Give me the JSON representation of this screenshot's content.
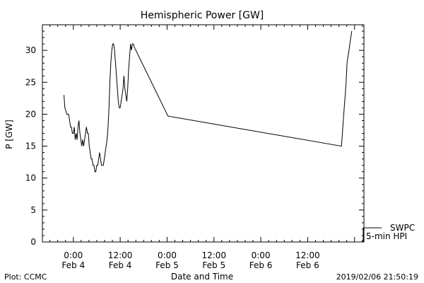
{
  "chart_data": {
    "type": "line",
    "title": "Hemispheric Power [GW]",
    "xlabel": "Date and Time",
    "ylabel": "P [GW]",
    "ylim": [
      0,
      34
    ],
    "xlim": [
      -0.33,
      3.1
    ],
    "x_unit": "days since Feb 4 0:00",
    "yticks": [
      0,
      5,
      10,
      15,
      20,
      25,
      30
    ],
    "xticks": [
      {
        "x": 0.0,
        "time": "0:00",
        "date": "Feb 4"
      },
      {
        "x": 0.5,
        "time": "12:00",
        "date": "Feb 4"
      },
      {
        "x": 1.0,
        "time": "0:00",
        "date": "Feb 5"
      },
      {
        "x": 1.5,
        "time": "12:00",
        "date": "Feb 5"
      },
      {
        "x": 2.0,
        "time": "0:00",
        "date": "Feb 6"
      },
      {
        "x": 2.5,
        "time": "12:00",
        "date": "Feb 6"
      }
    ],
    "grid": false,
    "legend": {
      "placement": "right-bottom",
      "entries": [
        "SWPC",
        "5-min HPI"
      ]
    },
    "series": [
      {
        "name": "SWPC",
        "x": [
          -0.1,
          -0.09,
          -0.07,
          -0.06,
          -0.05,
          -0.04,
          -0.03,
          -0.02,
          -0.01,
          0.0,
          0.01,
          0.02,
          0.03,
          0.04,
          0.05,
          0.06,
          0.07,
          0.08,
          0.09,
          0.1,
          0.11,
          0.12,
          0.13,
          0.14,
          0.15,
          0.16,
          0.17,
          0.18,
          0.19,
          0.2,
          0.21,
          0.22,
          0.23,
          0.24,
          0.25,
          0.26,
          0.27,
          0.28,
          0.29,
          0.3,
          0.31,
          0.32,
          0.33,
          0.34,
          0.35,
          0.36,
          0.37,
          0.38,
          0.39,
          0.4,
          0.41,
          0.42,
          0.43,
          0.44,
          0.45,
          0.46,
          0.47,
          0.48,
          0.49,
          0.5,
          0.51,
          0.52,
          0.53,
          0.54,
          0.55,
          0.56,
          0.57,
          0.58,
          0.59,
          0.6,
          0.61,
          0.62,
          0.63,
          0.64,
          0.65,
          0.66,
          0.67,
          0.68,
          0.69,
          0.7,
          0.71,
          0.72,
          0.73,
          0.74,
          0.75,
          0.76,
          0.77,
          0.78,
          0.79,
          0.8,
          0.81,
          0.82,
          0.83,
          0.84,
          0.85,
          0.86,
          0.87,
          0.88,
          0.89,
          0.9,
          0.91,
          0.92,
          0.93,
          0.94,
          0.95,
          0.96,
          0.97,
          0.98,
          0.99,
          1.0,
          1.01,
          2.86,
          2.87,
          2.88,
          2.89,
          2.9,
          2.91,
          2.92,
          2.93,
          2.94,
          2.95,
          2.96,
          2.97
        ],
        "y": [
          23,
          21,
          20,
          20,
          20,
          19,
          18,
          18,
          17,
          17,
          18,
          16,
          17,
          16,
          18,
          19,
          17,
          16,
          15,
          16,
          15,
          16,
          17,
          18,
          17,
          17,
          15,
          14,
          13,
          13,
          12,
          12,
          11,
          11,
          12,
          12,
          13,
          14,
          13,
          12,
          12,
          12,
          13,
          14,
          15,
          16,
          18,
          21,
          25,
          28,
          30,
          31,
          31,
          30,
          28,
          26,
          24,
          22,
          21,
          21,
          22,
          23,
          24,
          26,
          24,
          23,
          22,
          24,
          27,
          29,
          31,
          30,
          31,
          31,
          30.5,
          30.2,
          29.9,
          29.6,
          29.3,
          29.0,
          28.7,
          28.4,
          28.1,
          27.8,
          27.5,
          27.2,
          26.9,
          26.6,
          26.3,
          26.0,
          25.7,
          25.4,
          25.1,
          24.8,
          24.5,
          24.2,
          23.9,
          23.6,
          23.3,
          23.0,
          22.7,
          22.4,
          22.1,
          21.8,
          21.5,
          21.2,
          20.9,
          20.6,
          20.3,
          20.0,
          19.7,
          15,
          17,
          19,
          21,
          23,
          25,
          28,
          29,
          30,
          31,
          32,
          33
        ]
      }
    ]
  },
  "footer": {
    "left": "Plot: CCMC",
    "right": "2019/02/06 21:50:19"
  }
}
